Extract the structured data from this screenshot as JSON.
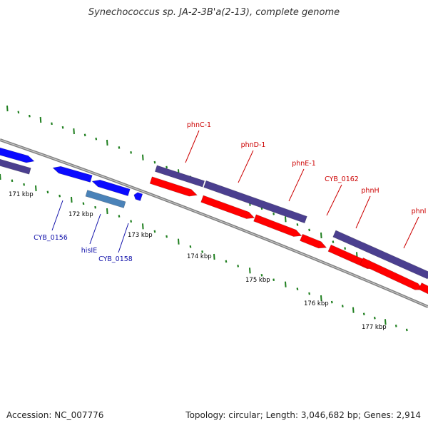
{
  "title": "Synechococcus sp. JA-2-3B'a(2-13), complete genome",
  "footer": {
    "accession_label": "Accession:",
    "accession": "NC_007776",
    "topology_label": "Topology:",
    "topology": "circular",
    "length_label": "Length:",
    "length": "3,046,682 bp",
    "genes_label": "Genes:",
    "genes": "2,914"
  },
  "colors": {
    "background": "#ffffff",
    "backbone": "#808080",
    "tick": "#1f7f1f",
    "forward_gene": "#ff0000",
    "forward_cds": "#4b3f8f",
    "reverse_gene": "#0a0aff",
    "reverse_cds": "#4b3f8f",
    "reverse_other": "#4a82b8",
    "label_forward": "#cc0000",
    "label_reverse": "#1111aa",
    "scale_label": "#000000"
  },
  "scale_labels": [
    "171 kbp",
    "172 kbp",
    "173 kbp",
    "174 kbp",
    "175 kbp",
    "176 kbp",
    "177 kbp"
  ],
  "gene_labels": {
    "forward": [
      "phnC-1",
      "phnD-1",
      "phnE-1",
      "CYB_0162",
      "phnH",
      "phnI"
    ],
    "reverse": [
      "CYB_0156",
      "hisIE",
      "CYB_0158"
    ]
  }
}
